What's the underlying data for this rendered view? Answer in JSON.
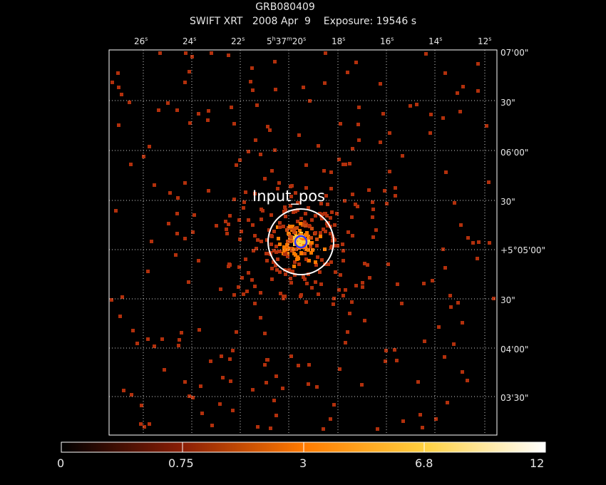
{
  "header": {
    "object": "GRB080409",
    "subtitle": "SWIFT XRT   2008 Apr  9    Exposure: 19546 s"
  },
  "axes": {
    "ra_ticks": [
      {
        "label": "26",
        "sup": "s"
      },
      {
        "label": "24",
        "sup": "s"
      },
      {
        "label": "22",
        "sup": "s"
      },
      {
        "label": "5h37m20",
        "sup": "s",
        "main": true
      },
      {
        "label": "18",
        "sup": "s"
      },
      {
        "label": "16",
        "sup": "s"
      },
      {
        "label": "14",
        "sup": "s"
      },
      {
        "label": "12",
        "sup": "s"
      }
    ],
    "dec_ticks": [
      "07'00\"",
      "30\"",
      "06'00\"",
      "30\"",
      "+5°05'00\"",
      "30\"",
      "04'00\"",
      "03'30\""
    ]
  },
  "annotation": {
    "region_label": "Input_pos"
  },
  "colorbar": {
    "labels": [
      "0",
      "0.75",
      "3",
      "6.8",
      "12"
    ]
  },
  "colors": {
    "background": "#000000",
    "grid": "#d0d0d0",
    "frame": "#ffffff",
    "pixel_low": "#b2300c",
    "pixel_mid": "#ff7a00",
    "pixel_high": "#ffd040",
    "source_circle": "#ffffff",
    "centroid_circle": "#3333ff"
  }
}
